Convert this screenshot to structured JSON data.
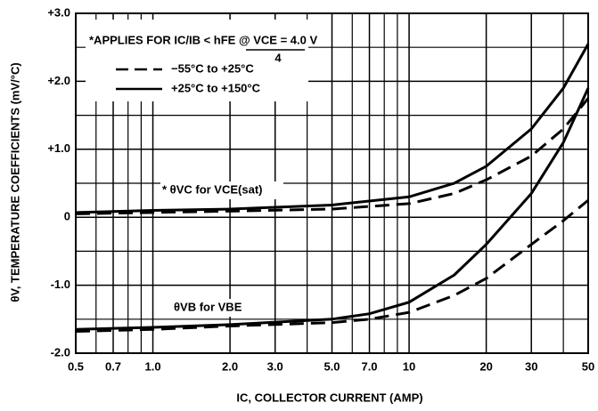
{
  "chart_data": {
    "type": "line",
    "xlabel": "IC, COLLECTOR CURRENT (AMP)",
    "ylabel": "θV, TEMPERATURE COEFFICIENTS (mV/°C)",
    "xscale": "log",
    "xlim": [
      0.5,
      50
    ],
    "ylim": [
      -2,
      3
    ],
    "xticks": [
      0.5,
      0.7,
      {
        "value": 1,
        "label": "1.0"
      },
      {
        "value": 2,
        "label": "2.0"
      },
      {
        "value": 3,
        "label": "3.0"
      },
      {
        "value": 5,
        "label": "5.0"
      },
      {
        "value": 7,
        "label": "7.0"
      },
      10,
      20,
      30,
      50
    ],
    "yticks": [
      {
        "value": -2,
        "label": "-2.0"
      },
      {
        "value": -1,
        "label": "-1.0"
      },
      0,
      {
        "value": 1,
        "label": "+1.0"
      },
      {
        "value": 2,
        "label": "+2.0"
      },
      {
        "value": 3,
        "label": "+3.0"
      }
    ],
    "x_gridlines": [
      0.6,
      0.8,
      0.9,
      4,
      6,
      8,
      9,
      40
    ],
    "y_gridlines": [
      -1.5,
      -0.5,
      0.5,
      1.5,
      2.5
    ],
    "grid": true,
    "legend": "upper left",
    "annotations": [
      "*APPLIES FOR IC/IB < hFE @ VCE = 4.0 V",
      "4",
      "* θVC for VCE(sat)",
      "θVB for VBE"
    ],
    "series": [
      {
        "name": "−55°C to +25°C",
        "dashed": true,
        "color": "#000000",
        "lines": [
          {
            "x": [
              0.5,
              1,
              2,
              5,
              10,
              15,
              20,
              30,
              40,
              50
            ],
            "values": [
              0.05,
              0.07,
              0.09,
              0.12,
              0.2,
              0.35,
              0.55,
              0.9,
              1.3,
              1.75
            ]
          },
          {
            "x": [
              0.5,
              1,
              2,
              5,
              7,
              10,
              15,
              20,
              30,
              40,
              50
            ],
            "values": [
              -1.68,
              -1.65,
              -1.6,
              -1.55,
              -1.5,
              -1.4,
              -1.15,
              -0.9,
              -0.4,
              -0.05,
              0.25
            ]
          }
        ]
      },
      {
        "name": "+25°C to +150°C",
        "dashed": false,
        "color": "#000000",
        "lines": [
          {
            "x": [
              0.5,
              1,
              2,
              5,
              10,
              15,
              20,
              30,
              40,
              50
            ],
            "values": [
              0.07,
              0.1,
              0.12,
              0.18,
              0.3,
              0.5,
              0.75,
              1.3,
              1.9,
              2.55
            ]
          },
          {
            "x": [
              0.5,
              1,
              2,
              5,
              7,
              10,
              15,
              20,
              30,
              40,
              50
            ],
            "values": [
              -1.65,
              -1.62,
              -1.58,
              -1.5,
              -1.42,
              -1.25,
              -0.85,
              -0.4,
              0.35,
              1.1,
              1.9
            ]
          }
        ]
      }
    ]
  }
}
